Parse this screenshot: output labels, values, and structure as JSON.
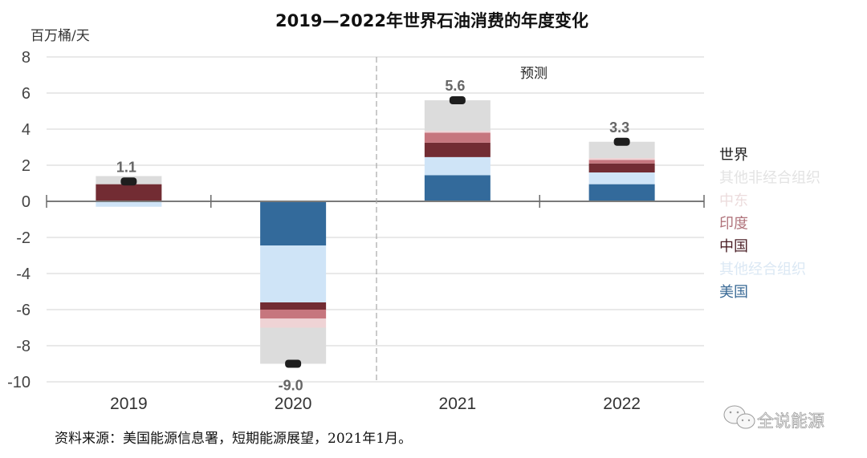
{
  "chart_data": {
    "type": "bar",
    "stacked": true,
    "title": "2019—2022年世界石油消费的年度变化",
    "ylabel": "百万桶/天",
    "xlabel": "",
    "ylim": [
      -10,
      8
    ],
    "yticks": [
      8,
      6,
      4,
      2,
      0,
      -2,
      -4,
      -6,
      -8,
      -10
    ],
    "ytick_labels": [
      "8",
      "6",
      "4",
      "2",
      "0",
      "-2",
      "-4",
      "-6",
      "-8",
      "-10"
    ],
    "grid": true,
    "categories": [
      "2019",
      "2020",
      "2021",
      "2022"
    ],
    "forecast_annotation": {
      "label": "预测",
      "starts_before": "2021"
    },
    "series": [
      {
        "name": "美国",
        "color": "#336a9b",
        "values": [
          0.0,
          -2.45,
          1.45,
          0.95
        ]
      },
      {
        "name": "其他经合组织",
        "color": "#cfe4f7",
        "values": [
          -0.3,
          -3.15,
          1.0,
          0.65
        ]
      },
      {
        "name": "中国",
        "color": "#722c33",
        "values": [
          0.95,
          -0.4,
          0.8,
          0.5
        ]
      },
      {
        "name": "印度",
        "color": "#c6767e",
        "values": [
          0.0,
          -0.5,
          0.55,
          0.2
        ]
      },
      {
        "name": "中东",
        "color": "#efd3d5",
        "values": [
          0.0,
          -0.5,
          0.1,
          0.1
        ]
      },
      {
        "name": "其他非经合组织",
        "color": "#dcdcdc",
        "values": [
          0.45,
          -2.0,
          1.7,
          0.9
        ]
      }
    ],
    "total": {
      "name": "世界",
      "color": "#1e1e1e",
      "values": [
        1.1,
        -9.0,
        5.6,
        3.3
      ],
      "labels": [
        "1.1",
        "-9.0",
        "5.6",
        "3.3"
      ]
    },
    "legend": {
      "placement": "right",
      "entries": [
        {
          "label": "世界",
          "color": "#1e1e1e"
        },
        {
          "label": "其他非经合组织",
          "color": "#e3e3e3"
        },
        {
          "label": "中东",
          "color": "#ecdcdd"
        },
        {
          "label": "印度",
          "color": "#b0737b"
        },
        {
          "label": "中国",
          "color": "#4a1e24"
        },
        {
          "label": "其他经合组织",
          "color": "#dbe8f4"
        },
        {
          "label": "美国",
          "color": "#3a6a96"
        }
      ]
    },
    "source": "资料来源：美国能源信息署，短期能源展望，2021年1月。"
  },
  "watermark": {
    "text": "全说能源",
    "icon": "wechat-icon"
  }
}
